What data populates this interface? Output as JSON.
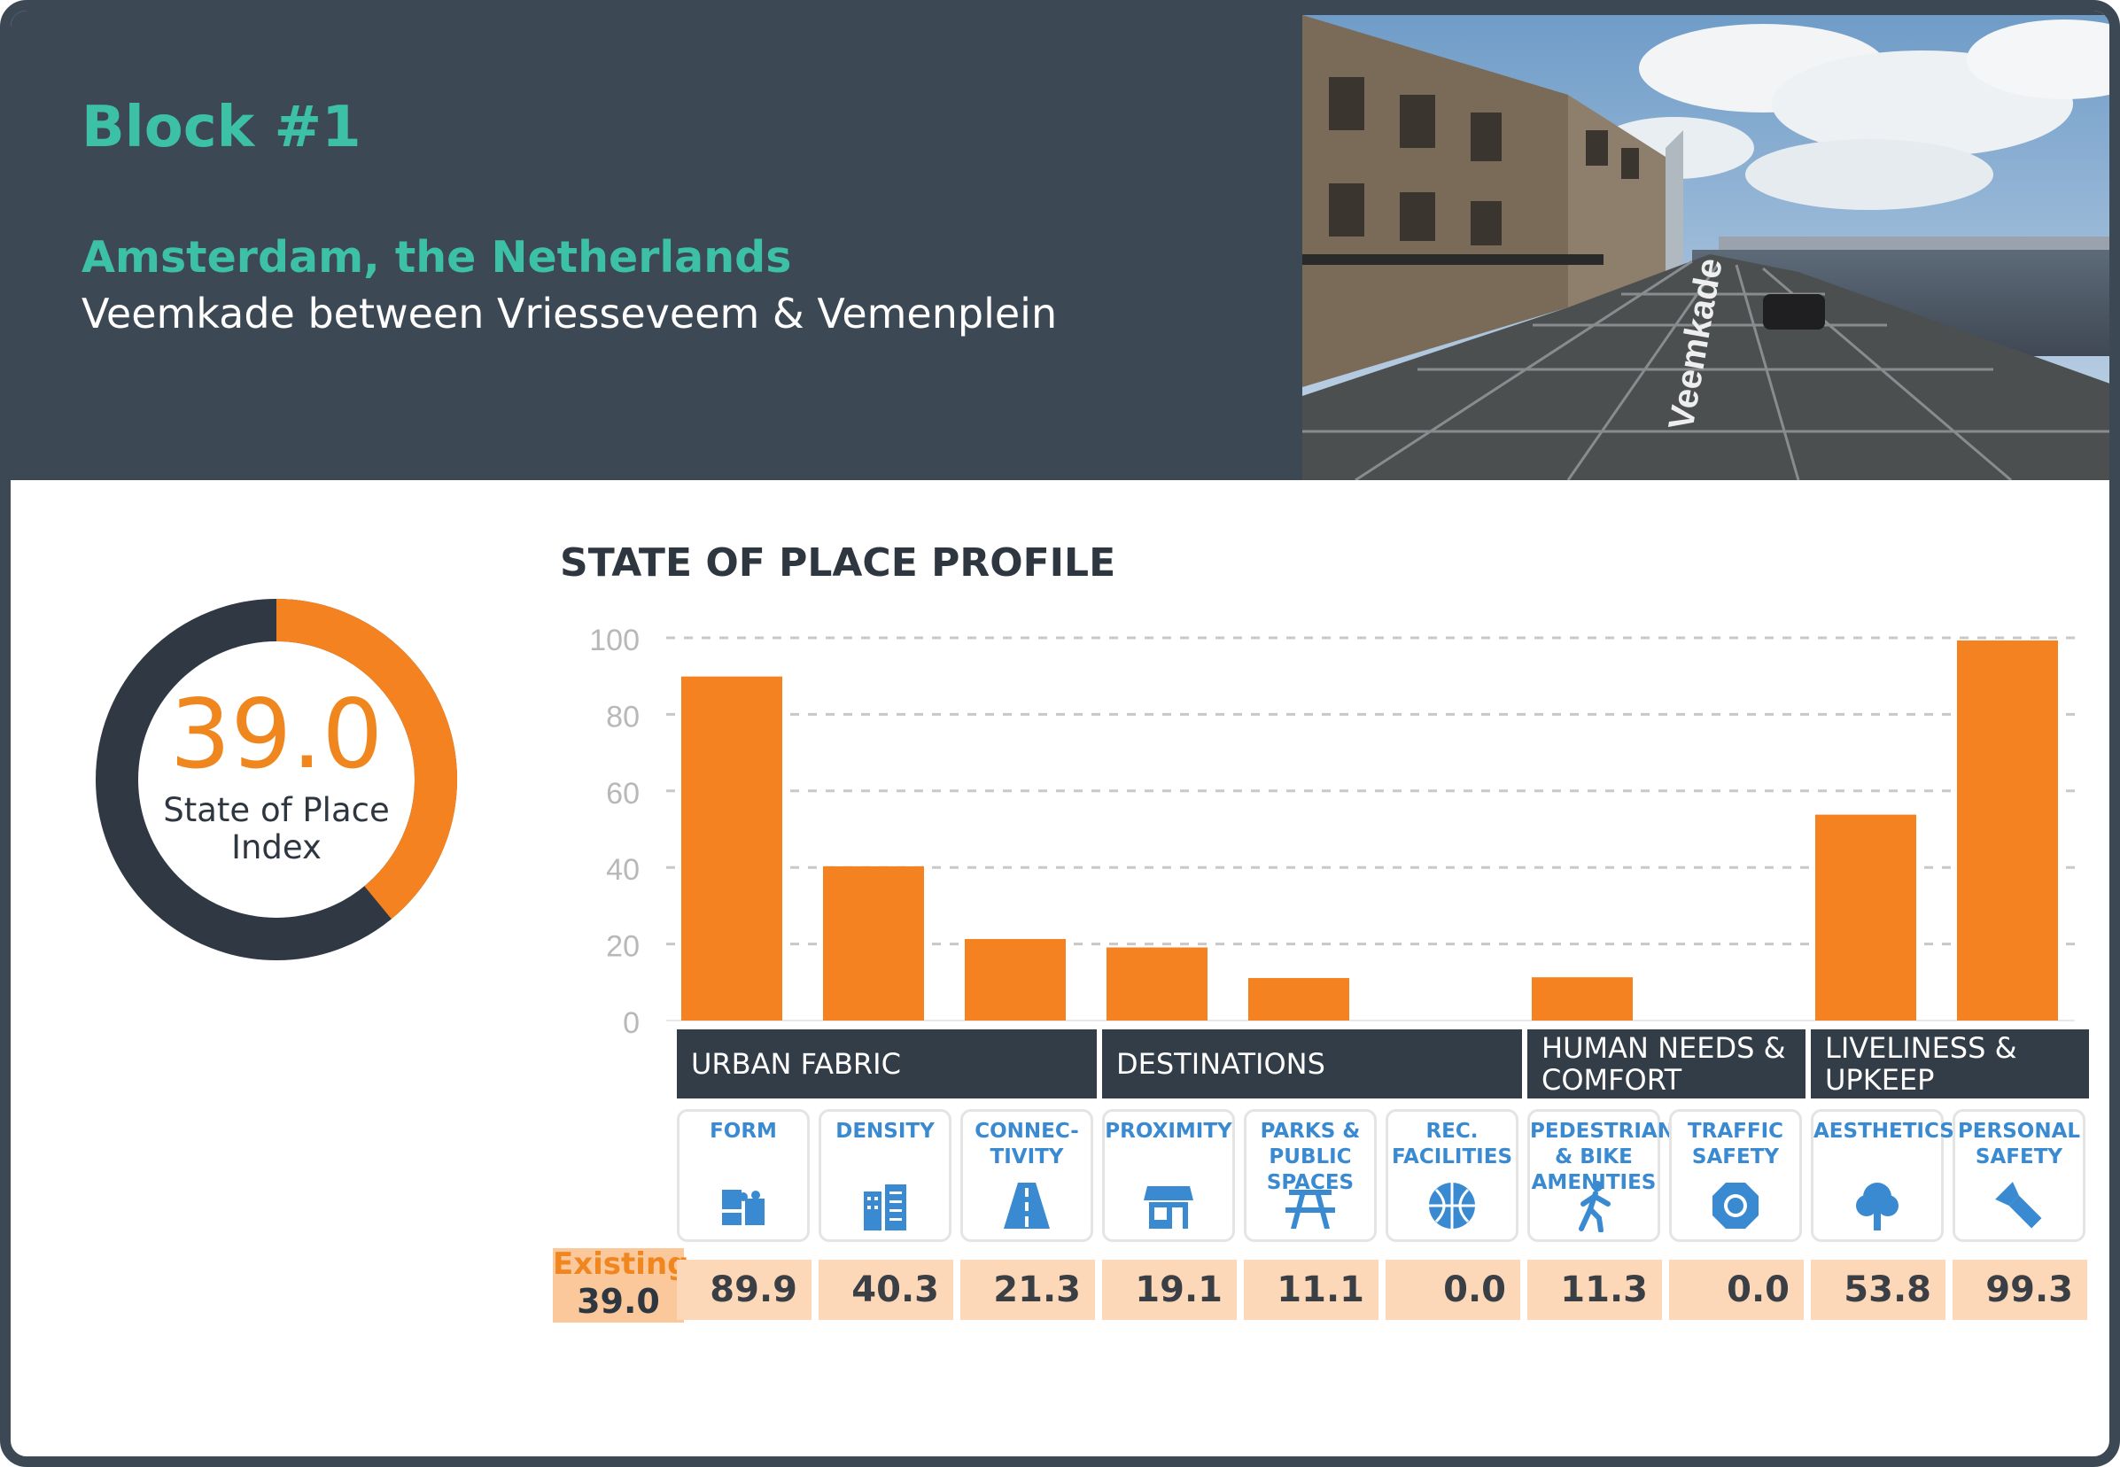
{
  "header": {
    "block_title": "Block #1",
    "city": "Amsterdam, the Netherlands",
    "street": "Veemkade between Vriesseveem & Vemenplein",
    "photo_street_sign": "Veemkade"
  },
  "index": {
    "value": "39.0",
    "label": "State of Place Index",
    "fraction": 0.39
  },
  "colors": {
    "bar": "#f58220",
    "dark": "#333d48",
    "accent": "#3cc0a6",
    "category_text": "#3a8ad2",
    "score_bg": "#fcd8b8"
  },
  "chart_data": {
    "type": "bar",
    "title": "STATE OF PLACE PROFILE",
    "categories": [
      "FORM",
      "DENSITY",
      "CONNEC-TIVITY",
      "PROXIMITY",
      "PARKS & PUBLIC SPACES",
      "REC. FACILITIES",
      "PEDESTRIAN & BIKE AMENITIES",
      "TRAFFIC SAFETY",
      "AESTHETICS",
      "PERSONAL SAFETY"
    ],
    "values": [
      89.9,
      40.3,
      21.3,
      19.1,
      11.1,
      0.0,
      11.3,
      0.0,
      53.8,
      99.3
    ],
    "ylim": [
      0,
      100
    ],
    "yticks": [
      "0",
      "20",
      "40",
      "60",
      "80",
      "100"
    ],
    "grid": true,
    "groups": [
      {
        "label": "URBAN FABRIC",
        "count": 3
      },
      {
        "label": "DESTINATIONS",
        "count": 3
      },
      {
        "label": "HUMAN NEEDS & COMFORT",
        "count": 2
      },
      {
        "label": "LIVELINESS & UPKEEP",
        "count": 2
      }
    ],
    "category_labels": [
      "FORM",
      "DENSITY",
      "CONNEC-\nTIVITY",
      "PROXIMITY",
      "PARKS &\nPUBLIC\nSPACES",
      "REC.\nFACILITIES",
      "PEDESTRIAN\n& BIKE\nAMENITIES",
      "TRAFFIC\nSAFETY",
      "AESTHETICS",
      "PERSONAL\nSAFETY"
    ],
    "category_icons": [
      "puzzle-icon",
      "buildings-icon",
      "road-icon",
      "storefront-icon",
      "picnic-table-icon",
      "basketball-icon",
      "pedestrian-icon",
      "stop-sign-icon",
      "tree-icon",
      "flashlight-icon"
    ],
    "scores": [
      "89.9",
      "40.3",
      "21.3",
      "19.1",
      "11.1",
      "0.0",
      "11.3",
      "0.0",
      "53.8",
      "99.3"
    ],
    "existing_label": "Existing",
    "existing_value": "39.0"
  }
}
